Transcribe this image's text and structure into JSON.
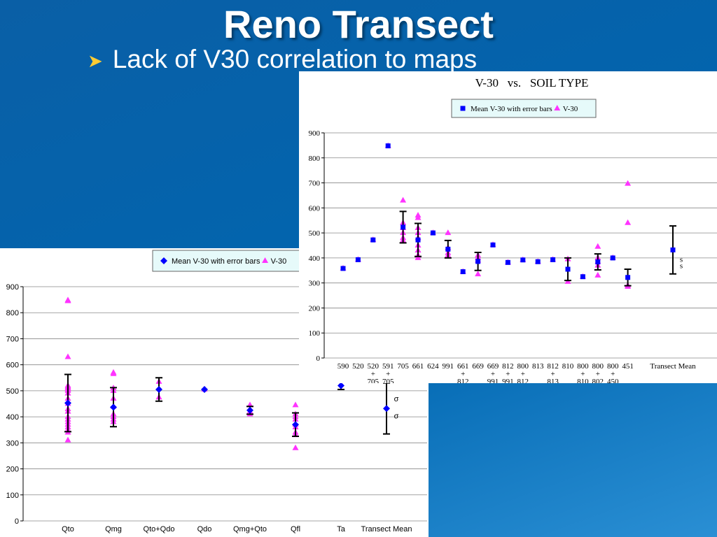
{
  "slide": {
    "title": "Reno Transect",
    "bullet": "Lack of V30 correlation to maps"
  },
  "chart_data": [
    {
      "type": "scatter",
      "categories": [
        "Qto",
        "Qmg",
        "Qto+Qdo",
        "Qdo",
        "Qmg+Qto",
        "Qfl",
        "Ta",
        "Transect Mean"
      ],
      "series": [
        {
          "name": "Mean V-30 with error bars",
          "color": "#0000ff",
          "marker": "diamond",
          "values": [
            453,
            437,
            505,
            505,
            425,
            370,
            520,
            432
          ],
          "errors": [
            110,
            75,
            45,
            null,
            15,
            45,
            15,
            98
          ]
        },
        {
          "name": "V-30",
          "color": "#ff33ff",
          "marker": "triangle",
          "x": [
            "Qto",
            "Qto",
            "Qto",
            "Qto",
            "Qto",
            "Qto",
            "Qto",
            "Qto",
            "Qto",
            "Qto",
            "Qto",
            "Qto",
            "Qto",
            "Qto",
            "Qto",
            "Qto",
            "Qto",
            "Qto",
            "Qto",
            "Qto",
            "Qto",
            "Qmg",
            "Qmg",
            "Qmg",
            "Qmg",
            "Qmg",
            "Qmg",
            "Qmg",
            "Qmg",
            "Qmg",
            "Qmg",
            "Qto+Qdo",
            "Qto+Qdo",
            "Qdo",
            "Qmg+Qto",
            "Qmg+Qto",
            "Qmg+Qto",
            "Qfl",
            "Qfl",
            "Qfl",
            "Qfl",
            "Qfl",
            "Qfl",
            "Qfl",
            "Qfl",
            "Qfl"
          ],
          "values": [
            848,
            845,
            630,
            520,
            515,
            510,
            505,
            500,
            490,
            470,
            450,
            430,
            420,
            400,
            390,
            380,
            370,
            360,
            350,
            340,
            310,
            570,
            565,
            510,
            500,
            470,
            440,
            410,
            400,
            390,
            380,
            535,
            475,
            505,
            445,
            420,
            410,
            445,
            410,
            400,
            390,
            370,
            360,
            340,
            330,
            280
          ]
        }
      ],
      "annotations": [
        "σ",
        "σ"
      ],
      "ylim": [
        0,
        900
      ],
      "yticks": [
        0,
        100,
        200,
        300,
        400,
        500,
        600,
        700,
        800,
        900
      ],
      "grid": true
    },
    {
      "type": "scatter",
      "title": "V-30   vs.   SOIL TYPE",
      "categories": [
        "590",
        "520",
        "520\n+\n705",
        "591\n+\n705",
        "705",
        "661",
        "624",
        "991",
        "661\n+\n812",
        "669",
        "669\n+\n991",
        "812\n+\n991",
        "800\n+\n812",
        "813",
        "812\n+\n813",
        "810",
        "800\n+\n810",
        "800\n+\n802",
        "800\n+\n450",
        "451",
        "Transect Mean"
      ],
      "series": [
        {
          "name": "Mean V-30 with error bars",
          "color": "#0000ff",
          "marker": "square",
          "values": [
            358,
            393,
            472,
            848,
            523,
            472,
            500,
            435,
            345,
            386,
            452,
            382,
            392,
            385,
            393,
            355,
            325,
            384,
            400,
            322,
            432
          ],
          "errors": [
            null,
            null,
            null,
            null,
            63,
            66,
            null,
            35,
            null,
            36,
            null,
            null,
            null,
            null,
            null,
            45,
            null,
            32,
            null,
            33,
            96
          ]
        },
        {
          "name": "V-30",
          "color": "#ff33ff",
          "marker": "triangle",
          "x": [
            "590",
            "520",
            "520\n+\n705",
            "591\n+\n705",
            "705",
            "705",
            "705",
            "705",
            "705",
            "705",
            "661",
            "661",
            "661",
            "661",
            "661",
            "661",
            "661",
            "661",
            "661",
            "624",
            "991",
            "991",
            "991",
            "991",
            "661\n+\n812",
            "669",
            "669",
            "669",
            "669",
            "669\n+\n991",
            "812\n+\n991",
            "800\n+\n812",
            "813",
            "812\n+\n813",
            "810",
            "810",
            "800\n+\n810",
            "800\n+\n802",
            "800\n+\n802",
            "800\n+\n802",
            "800\n+\n802",
            "800\n+\n802",
            "800\n+\n450",
            "451",
            "451",
            "451",
            "451"
          ],
          "values": [
            358,
            393,
            472,
            848,
            630,
            540,
            520,
            500,
            480,
            470,
            570,
            560,
            520,
            500,
            480,
            450,
            430,
            410,
            400,
            500,
            500,
            440,
            420,
            410,
            345,
            410,
            400,
            390,
            335,
            452,
            382,
            392,
            385,
            393,
            395,
            305,
            325,
            445,
            400,
            385,
            370,
            330,
            400,
            697,
            540,
            290,
            285
          ]
        }
      ],
      "annotations": [
        "s",
        "s"
      ],
      "ylim": [
        0,
        900
      ],
      "yticks": [
        0,
        100,
        200,
        300,
        400,
        500,
        600,
        700,
        800,
        900
      ],
      "grid": true
    }
  ]
}
